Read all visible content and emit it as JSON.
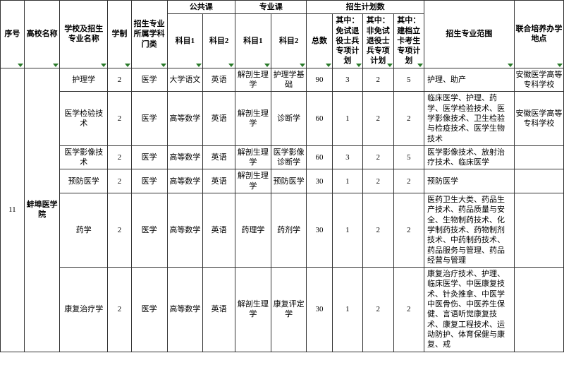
{
  "header": {
    "row1": {
      "seq": "序号",
      "school": "高校名称",
      "major_name": "学校及招生专业名称",
      "years": "学制",
      "category": "招生专业 所属学科门类",
      "public_courses": "公共课",
      "pro_courses": "专业课",
      "plan_group": "招生计划数",
      "scope": "招生专业范围",
      "joint": "联合培养办学地点"
    },
    "row2": {
      "sub1": "科目1",
      "sub2": "科目2",
      "psub1": "科目1",
      "psub2": "科目2",
      "total": "总数",
      "plan_a": "其中：免试退役士兵专项计划",
      "plan_b": "其中：非免试退役士兵专项计划",
      "plan_c": "其中：建档立卡考生专项计划"
    }
  },
  "school_seq": "11",
  "school_name": "蚌埠医学院",
  "rows": [
    {
      "major": "护理学",
      "years": "2",
      "category": "医学",
      "g1": "大学语文",
      "g2": "英语",
      "p1": "解剖生理学",
      "p2": "护理学基础",
      "total": "90",
      "a": "3",
      "b": "2",
      "c": "5",
      "scope": "护理、助产",
      "joint": "安徽医学高等专科学校"
    },
    {
      "major": "医学检验技术",
      "years": "2",
      "category": "医学",
      "g1": "高等数学",
      "g2": "英语",
      "p1": "解剖生理学",
      "p2": "诊断学",
      "total": "60",
      "a": "1",
      "b": "2",
      "c": "2",
      "scope": "临床医学、护理、药学、医学检验技术、医学影像技术、卫生检验与检疫技术、医学生物技术",
      "joint": "安徽医学高等专科学校"
    },
    {
      "major": "医学影像技术",
      "years": "2",
      "category": "医学",
      "g1": "高等数学",
      "g2": "英语",
      "p1": "解剖生理学",
      "p2": "医学影像诊断学",
      "total": "60",
      "a": "3",
      "b": "2",
      "c": "5",
      "scope": "医学影像技术、放射治疗技术、临床医学",
      "joint": ""
    },
    {
      "major": "预防医学",
      "years": "2",
      "category": "医学",
      "g1": "高等数学",
      "g2": "英语",
      "p1": "解剖生理学",
      "p2": "预防医学",
      "total": "30",
      "a": "1",
      "b": "2",
      "c": "2",
      "scope": "预防医学",
      "joint": ""
    },
    {
      "major": "药学",
      "years": "2",
      "category": "医学",
      "g1": "高等数学",
      "g2": "英语",
      "p1": "药理学",
      "p2": "药剂学",
      "total": "30",
      "a": "1",
      "b": "2",
      "c": "2",
      "scope": "医药卫生大类、药品生产技术、药品质量与安全、生物制药技术、化学制药技术、药物制剂技术、中药制药技术、药品服务与管理、药品经营与管理",
      "joint": ""
    },
    {
      "major": "康复治疗学",
      "years": "2",
      "category": "医学",
      "g1": "高等数学",
      "g2": "英语",
      "p1": "解剖生理学",
      "p2": "康复评定学",
      "total": "30",
      "a": "1",
      "b": "2",
      "c": "2",
      "scope": "康复治疗技术、护理、临床医学、中医康复技术、针灸推拿、中医学中医骨伤、中医养生保健、言语听觉康复技术、康复工程技术、运动防护、体育保健与康复、戒",
      "joint": ""
    }
  ],
  "colwidths": [
    "28",
    "42",
    "56",
    "28",
    "42",
    "42",
    "38",
    "42",
    "42",
    "30",
    "36",
    "36",
    "36",
    "106",
    "58"
  ]
}
